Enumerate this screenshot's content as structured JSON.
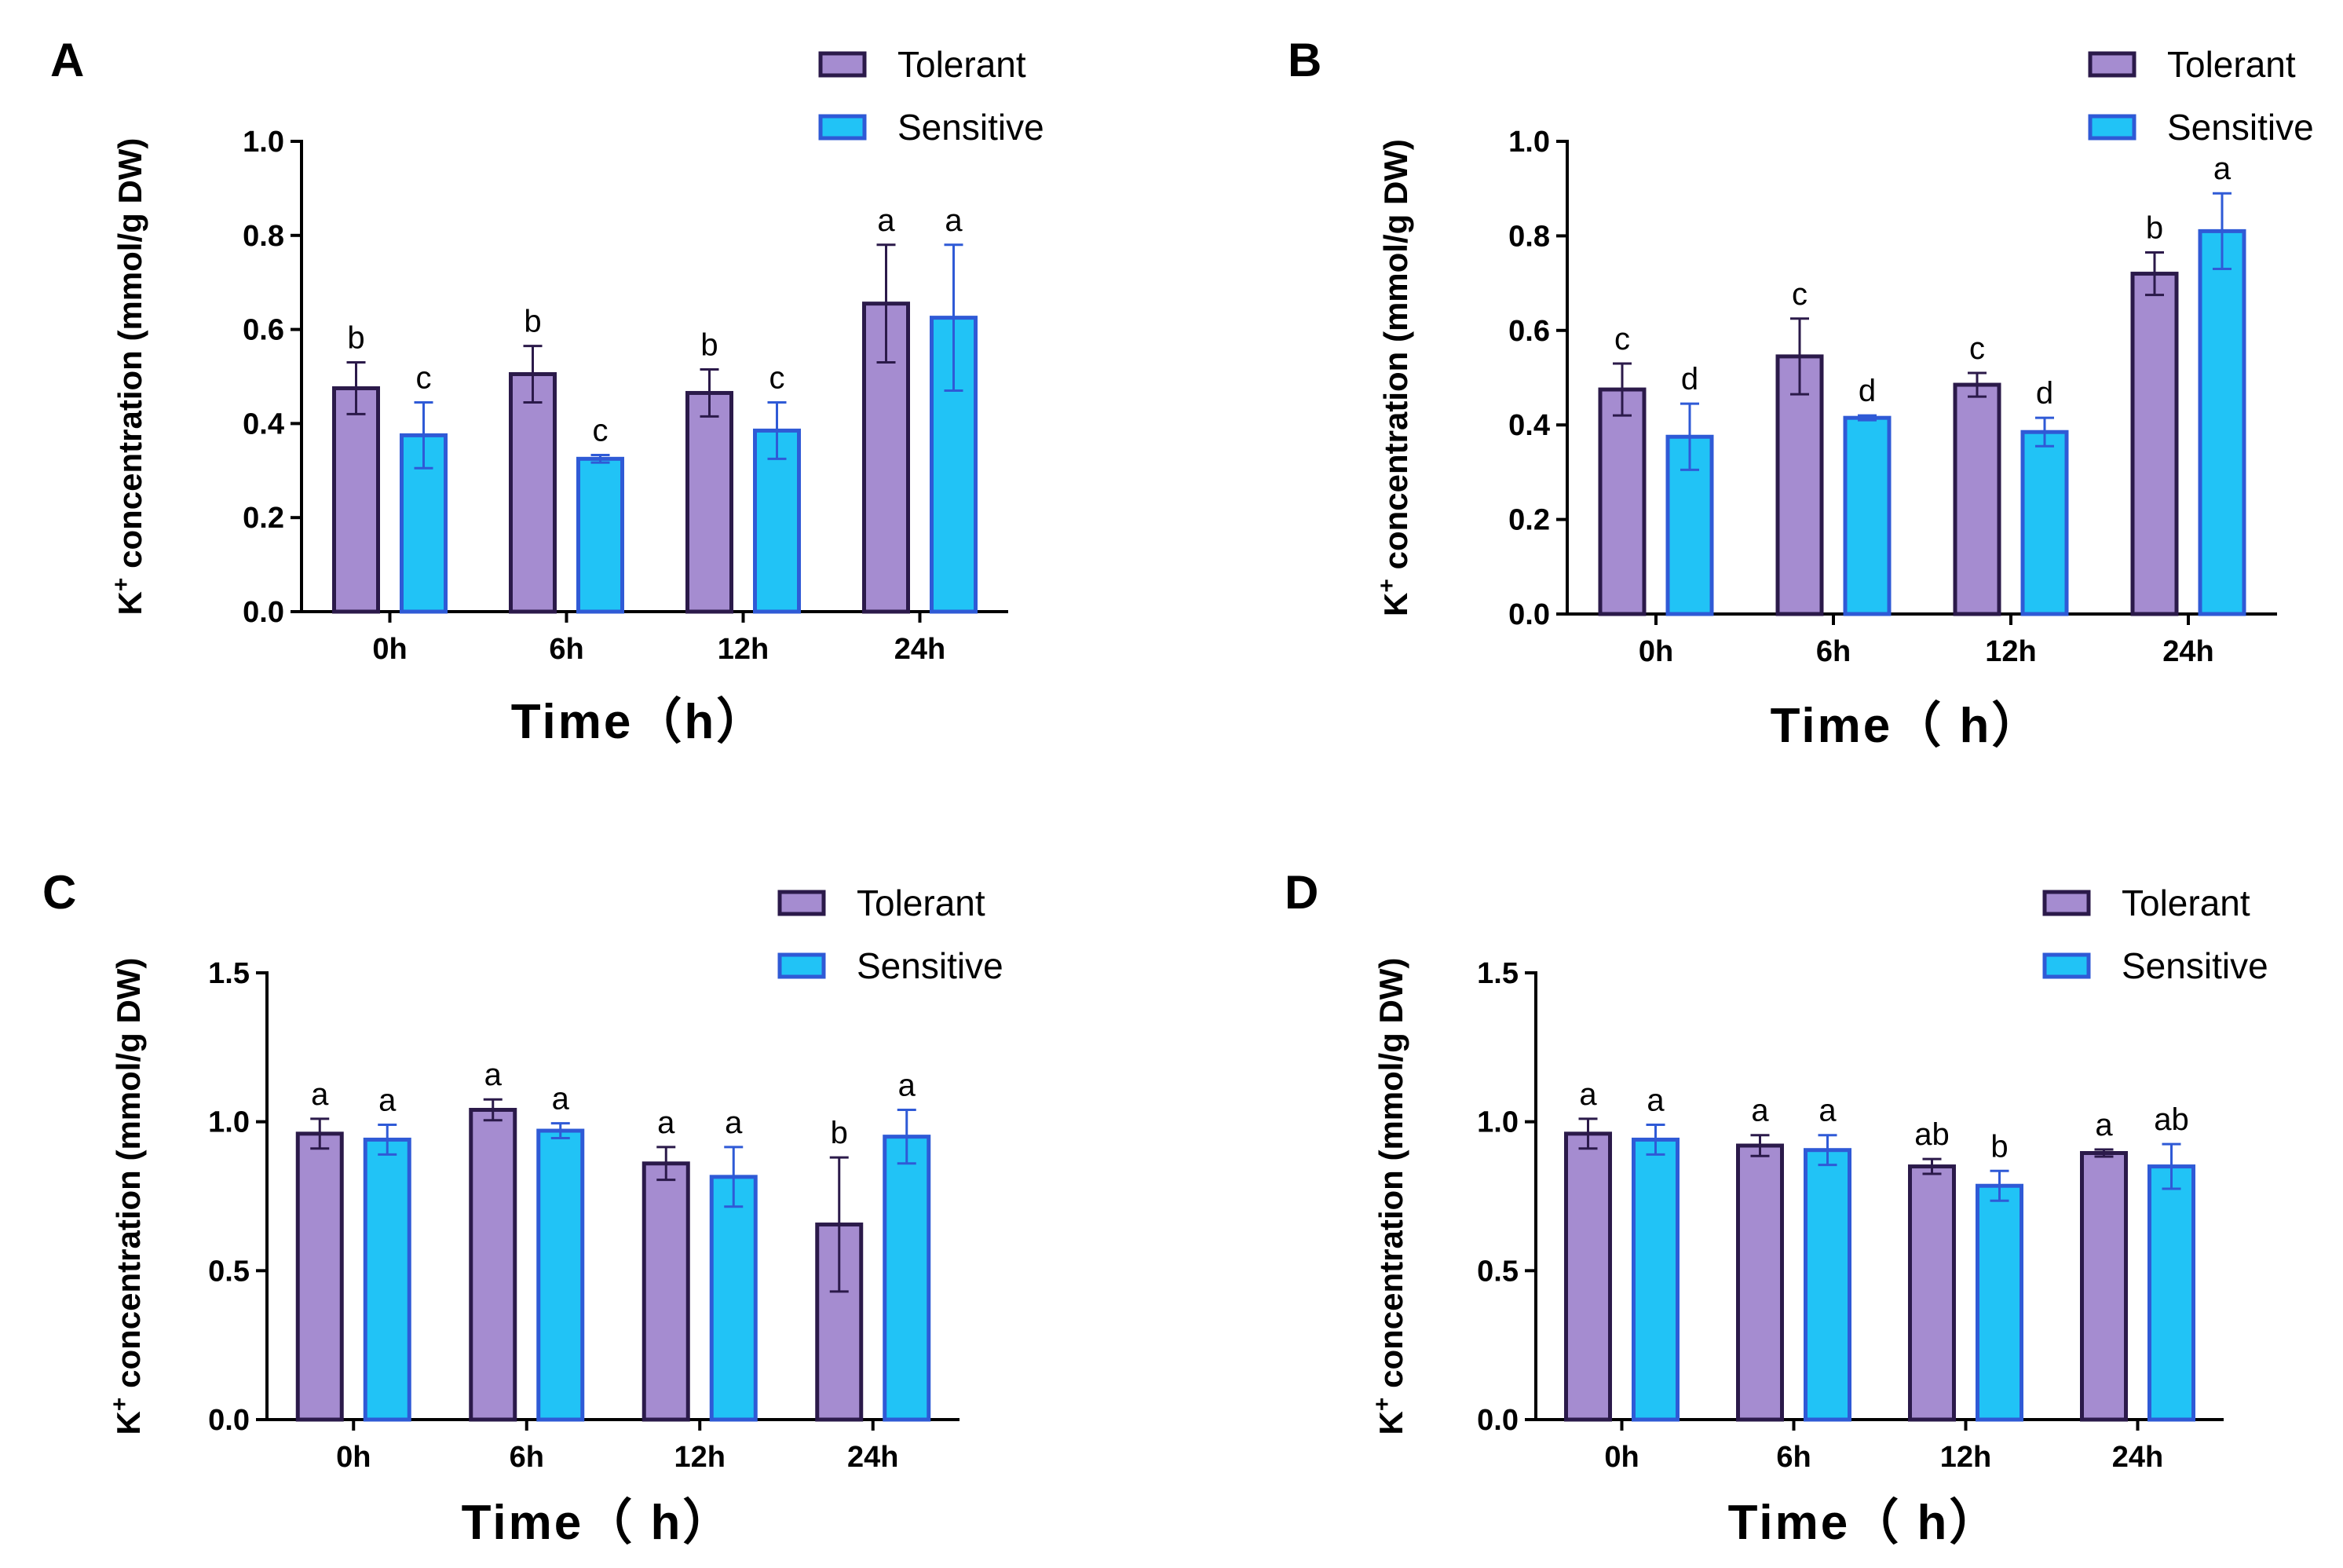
{
  "colors": {
    "tolerant_fill": "#a58cd0",
    "tolerant_stroke": "#2b1a4a",
    "sensitive_fill": "#21c3f6",
    "sensitive_stroke": "#2f5ad6",
    "axis": "#000000"
  },
  "chart_data": [
    {
      "panel": "A",
      "type": "bar",
      "title": "",
      "xlabel": "Time（h）",
      "ylabel_main": "K",
      "ylabel_sup": "+",
      "ylabel_rest": " concentration (mmol/g DW)",
      "ylim": [
        0,
        1.0
      ],
      "yticks": [
        "0.0",
        "0.2",
        "0.4",
        "0.6",
        "0.8",
        "1.0"
      ],
      "categories": [
        "0h",
        "6h",
        "12h",
        "24h"
      ],
      "series": [
        {
          "name": "Tolerant",
          "values": [
            0.475,
            0.505,
            0.465,
            0.655
          ],
          "errors": [
            0.055,
            0.06,
            0.05,
            0.125
          ],
          "labels": [
            "b",
            "b",
            "b",
            "a"
          ]
        },
        {
          "name": "Sensitive",
          "values": [
            0.375,
            0.325,
            0.385,
            0.625
          ],
          "errors": [
            0.07,
            0.008,
            0.06,
            0.155
          ],
          "labels": [
            "c",
            "c",
            "c",
            "a"
          ]
        }
      ],
      "legend": "top-right"
    },
    {
      "panel": "B",
      "type": "bar",
      "title": "",
      "xlabel": "Time（ h）",
      "ylabel_main": "K",
      "ylabel_sup": "+",
      "ylabel_rest": " concentration (mmol/g DW)",
      "ylim": [
        0,
        1.0
      ],
      "yticks": [
        "0.0",
        "0.2",
        "0.4",
        "0.6",
        "0.8",
        "1.0"
      ],
      "categories": [
        "0h",
        "6h",
        "12h",
        "24h"
      ],
      "series": [
        {
          "name": "Tolerant",
          "values": [
            0.475,
            0.545,
            0.485,
            0.72
          ],
          "errors": [
            0.055,
            0.08,
            0.025,
            0.045
          ],
          "labels": [
            "c",
            "c",
            "c",
            "b"
          ]
        },
        {
          "name": "Sensitive",
          "values": [
            0.375,
            0.415,
            0.385,
            0.81
          ],
          "errors": [
            0.07,
            0.005,
            0.03,
            0.08
          ],
          "labels": [
            "d",
            "d",
            "d",
            "a"
          ]
        }
      ],
      "legend": "top-right"
    },
    {
      "panel": "C",
      "type": "bar",
      "title": "",
      "xlabel": "Time（ h）",
      "ylabel_main": "K",
      "ylabel_sup": "+",
      "ylabel_rest": " concentration (mmol/g DW)",
      "ylim": [
        0,
        1.5
      ],
      "yticks": [
        "0.0",
        "0.5",
        "1.0",
        "1.5"
      ],
      "categories": [
        "0h",
        "6h",
        "12h",
        "24h"
      ],
      "series": [
        {
          "name": "Tolerant",
          "values": [
            0.96,
            1.04,
            0.86,
            0.655
          ],
          "errors": [
            0.05,
            0.035,
            0.055,
            0.225
          ],
          "labels": [
            "a",
            "a",
            "a",
            "b"
          ]
        },
        {
          "name": "Sensitive",
          "values": [
            0.94,
            0.97,
            0.815,
            0.95
          ],
          "errors": [
            0.05,
            0.025,
            0.1,
            0.09
          ],
          "labels": [
            "a",
            "a",
            "a",
            "a"
          ]
        }
      ],
      "legend": "top-right"
    },
    {
      "panel": "D",
      "type": "bar",
      "title": "",
      "xlabel": "Time（ h）",
      "ylabel_main": "K",
      "ylabel_sup": "+",
      "ylabel_rest": " concentration (mmol/g DW)",
      "ylim": [
        0,
        1.5
      ],
      "yticks": [
        "0.0",
        "0.5",
        "1.0",
        "1.5"
      ],
      "categories": [
        "0h",
        "6h",
        "12h",
        "24h"
      ],
      "series": [
        {
          "name": "Tolerant",
          "values": [
            0.96,
            0.92,
            0.85,
            0.895
          ],
          "errors": [
            0.05,
            0.035,
            0.025,
            0.012
          ],
          "labels": [
            "a",
            "a",
            "ab",
            "a"
          ]
        },
        {
          "name": "Sensitive",
          "values": [
            0.94,
            0.905,
            0.785,
            0.85
          ],
          "errors": [
            0.05,
            0.05,
            0.05,
            0.075
          ],
          "labels": [
            "a",
            "a",
            "b",
            "ab"
          ]
        }
      ],
      "legend": "top-right"
    }
  ]
}
